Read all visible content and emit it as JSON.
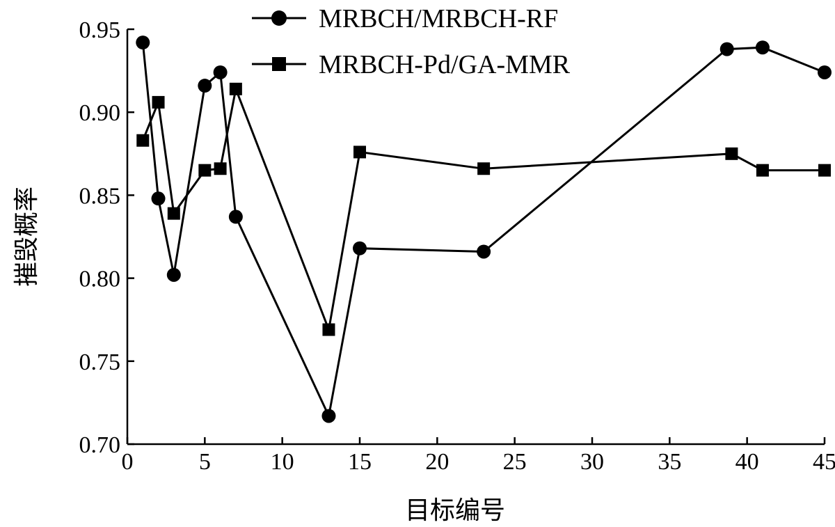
{
  "chart_data": {
    "type": "line",
    "xlabel": "目标编号",
    "ylabel": "摧毁概率",
    "xlim": [
      0,
      45
    ],
    "ylim": [
      0.7,
      0.95
    ],
    "xticks": [
      0,
      5,
      10,
      15,
      20,
      25,
      30,
      35,
      40,
      45
    ],
    "yticks": [
      0.7,
      0.75,
      0.8,
      0.85,
      0.9,
      0.95
    ],
    "xtick_labels": [
      "0",
      "5",
      "10",
      "15",
      "20",
      "25",
      "30",
      "35",
      "40",
      "45"
    ],
    "ytick_labels": [
      "0.70",
      "0.75",
      "0.80",
      "0.85",
      "0.90",
      "0.95"
    ],
    "grid": false,
    "legend_position": "top-center",
    "series": [
      {
        "name": "MRBCH/MRBCH-RF",
        "marker": "circle",
        "color": "#000000",
        "x": [
          1,
          2,
          3,
          5,
          6,
          7,
          13,
          15,
          23,
          38.7,
          41,
          45
        ],
        "y": [
          0.942,
          0.848,
          0.802,
          0.916,
          0.924,
          0.837,
          0.717,
          0.818,
          0.816,
          0.938,
          0.939,
          0.924
        ]
      },
      {
        "name": "MRBCH-Pd/GA-MMR",
        "marker": "square",
        "color": "#000000",
        "x": [
          1,
          2,
          3,
          5,
          6,
          7,
          13,
          15,
          23,
          39,
          41,
          45
        ],
        "y": [
          0.883,
          0.906,
          0.839,
          0.865,
          0.866,
          0.914,
          0.769,
          0.876,
          0.866,
          0.875,
          0.865,
          0.865
        ]
      }
    ]
  }
}
